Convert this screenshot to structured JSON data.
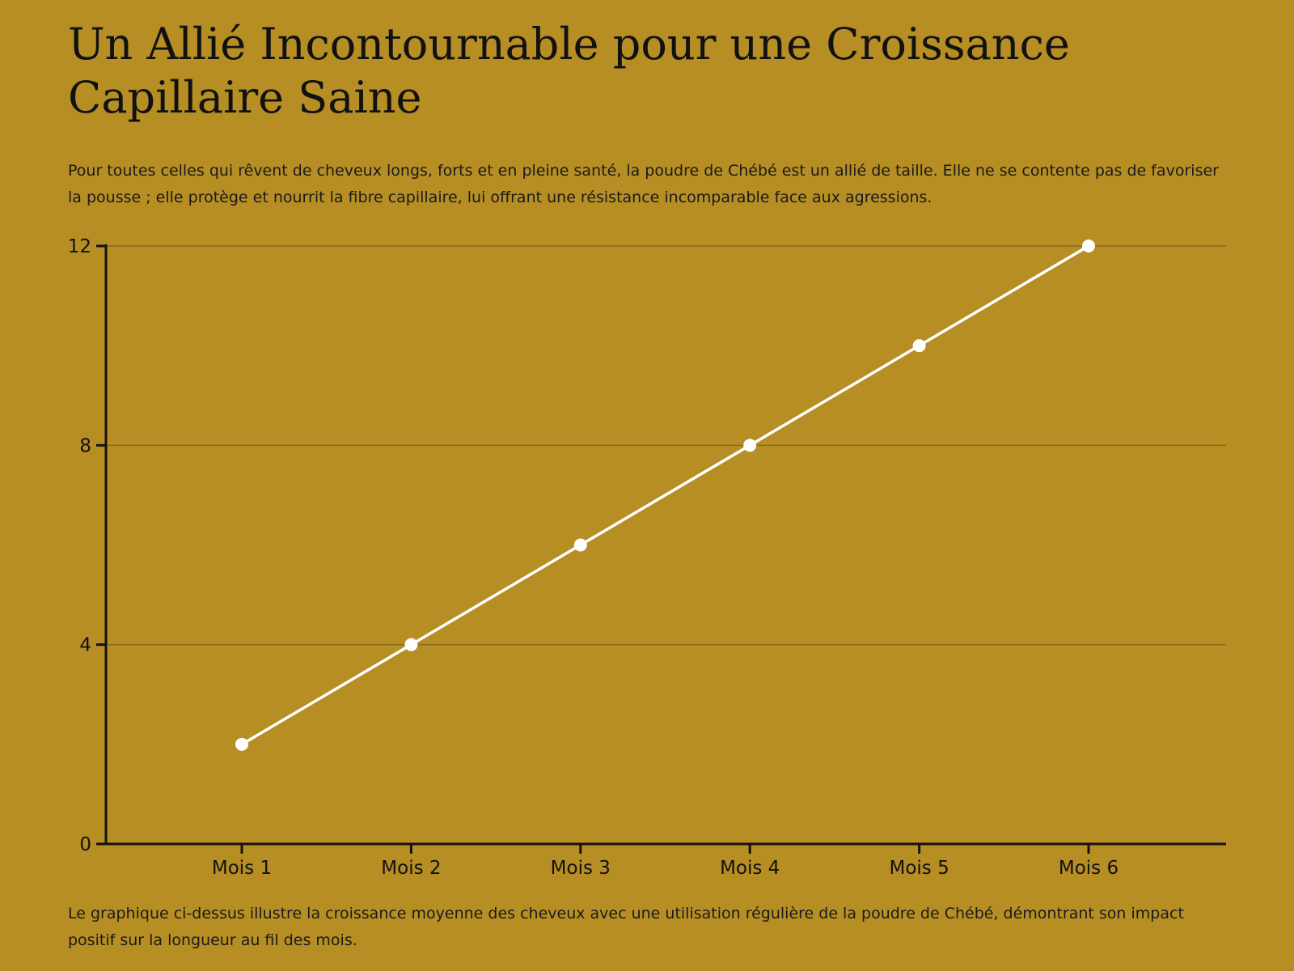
{
  "page": {
    "title": "Un Allié Incontournable pour une Croissance Capillaire Saine",
    "intro": "Pour toutes celles qui rêvent de cheveux longs, forts et en pleine santé, la poudre de Chébé est un allié de taille. Elle ne se contente pas de favoriser la pousse ; elle protège et nourrit la fibre capillaire, lui offrant une résistance incomparable face aux agressions.",
    "outro": "Le graphique ci-dessus illustre la croissance moyenne des cheveux avec une utilisation régulière de la poudre de Chébé, démontrant son impact positif sur la longueur au fil des mois."
  },
  "colors": {
    "background": "#b78e24",
    "line": "#ffffff",
    "axis": "#111111",
    "grid": "#8a6a1c"
  },
  "chart_data": {
    "type": "line",
    "categories": [
      "Mois 1",
      "Mois 2",
      "Mois 3",
      "Mois 4",
      "Mois 5",
      "Mois 6"
    ],
    "series": [
      {
        "values": [
          2,
          4,
          6,
          8,
          10,
          12
        ]
      }
    ],
    "ylim": [
      0,
      12
    ],
    "yticks": [
      0,
      4,
      8,
      12
    ],
    "grid": true,
    "legend": "none",
    "title": "",
    "xlabel": "",
    "ylabel": ""
  }
}
